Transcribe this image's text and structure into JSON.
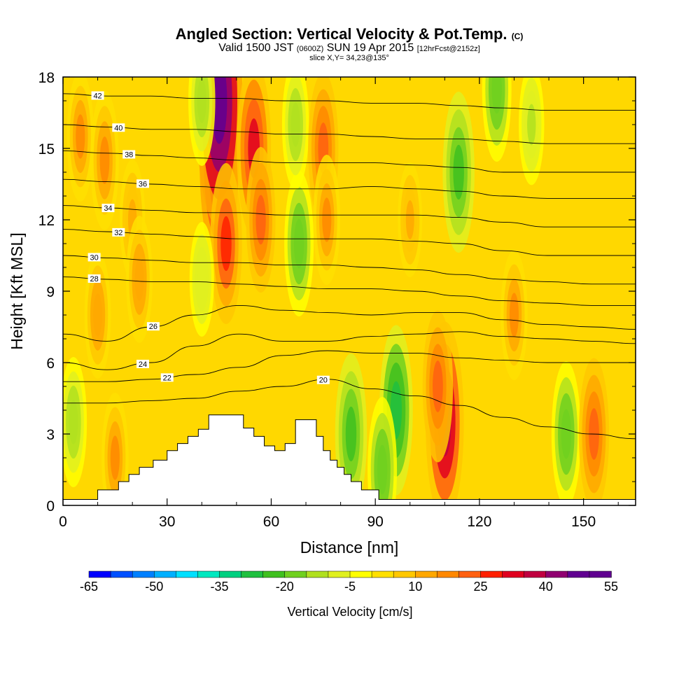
{
  "header": {
    "title": "Angled Section: Vertical Velocity & Pot.Temp.",
    "title_tag": "(C)",
    "valid_prefix": "Valid 1500 JST",
    "valid_utc": "(0600Z)",
    "valid_date": "SUN 19 Apr 2015",
    "forecast": "[12hrFcst@2152z]",
    "slice": "slice X,Y= 34,23@135°"
  },
  "chart_data": {
    "type": "heatmap",
    "xlabel": "Distance [nm]",
    "ylabel": "Height [Kft MSL]",
    "xlim": [
      0,
      165
    ],
    "ylim": [
      0,
      18
    ],
    "xticks": [
      0,
      30,
      60,
      90,
      120,
      150
    ],
    "yticks": [
      0,
      3,
      6,
      9,
      12,
      15,
      18
    ],
    "colorbar": {
      "label": "Vertical Velocity [cm/s]",
      "min": -65,
      "max": 55,
      "step": 5,
      "tick_labels": [
        -65,
        -50,
        -35,
        -20,
        -5,
        10,
        25,
        40,
        55
      ],
      "colors": [
        "#0000ff",
        "#0050ff",
        "#0080ff",
        "#00b0ff",
        "#00e0ff",
        "#00e8c0",
        "#00d080",
        "#20c040",
        "#40c020",
        "#70d020",
        "#b0e020",
        "#e0f020",
        "#ffff00",
        "#ffe000",
        "#ffc800",
        "#ffa800",
        "#ff8800",
        "#ff6010",
        "#ff2000",
        "#e00020",
        "#c00040",
        "#900070",
        "#600090"
      ]
    },
    "velocity_cells": [
      {
        "x": 5,
        "z": 15.5,
        "w": 15
      },
      {
        "x": 12,
        "z": 14.5,
        "w": 18
      },
      {
        "x": 20,
        "z": 12,
        "w": 12
      },
      {
        "x": 22,
        "z": 9.5,
        "w": 14
      },
      {
        "x": 10,
        "z": 8,
        "w": 14
      },
      {
        "x": 45,
        "z": 14.5,
        "w": 40
      },
      {
        "x": 45,
        "z": 17,
        "w": 55
      },
      {
        "x": 47,
        "z": 11,
        "w": 25
      },
      {
        "x": 55,
        "z": 15,
        "w": 30
      },
      {
        "x": 57,
        "z": 12,
        "w": 20
      },
      {
        "x": 40,
        "z": 17,
        "w": -15
      },
      {
        "x": 40,
        "z": 9.5,
        "w": -10
      },
      {
        "x": 68,
        "z": 11,
        "w": -20
      },
      {
        "x": 67,
        "z": 16,
        "w": -15
      },
      {
        "x": 75,
        "z": 15,
        "w": 22
      },
      {
        "x": 76,
        "z": 12,
        "w": 15
      },
      {
        "x": 83,
        "z": 3,
        "w": -25
      },
      {
        "x": 96,
        "z": 4,
        "w": -28
      },
      {
        "x": 92,
        "z": 1.5,
        "w": -20
      },
      {
        "x": 110,
        "z": 3.5,
        "w": 38
      },
      {
        "x": 108,
        "z": 5,
        "w": 22
      },
      {
        "x": 114,
        "z": 14,
        "w": -25
      },
      {
        "x": 125,
        "z": 17.5,
        "w": -20
      },
      {
        "x": 135,
        "z": 16,
        "w": -12
      },
      {
        "x": 145,
        "z": 3,
        "w": -20
      },
      {
        "x": 153,
        "z": 3,
        "w": 22
      },
      {
        "x": 100,
        "z": 12,
        "w": 10
      },
      {
        "x": 130,
        "z": 8,
        "w": 15
      },
      {
        "x": 3,
        "z": 3.5,
        "w": -15
      },
      {
        "x": 15,
        "z": 2,
        "w": 15
      }
    ],
    "terrain": [
      [
        0,
        0.25
      ],
      [
        10,
        0.25
      ],
      [
        10,
        0.65
      ],
      [
        16,
        0.65
      ],
      [
        16,
        1.0
      ],
      [
        19,
        1.0
      ],
      [
        19,
        1.3
      ],
      [
        22,
        1.3
      ],
      [
        22,
        1.6
      ],
      [
        26,
        1.6
      ],
      [
        26,
        1.9
      ],
      [
        30,
        1.9
      ],
      [
        30,
        2.3
      ],
      [
        33,
        2.3
      ],
      [
        33,
        2.6
      ],
      [
        36,
        2.6
      ],
      [
        36,
        2.9
      ],
      [
        39,
        2.9
      ],
      [
        39,
        3.2
      ],
      [
        42,
        3.2
      ],
      [
        42,
        3.8
      ],
      [
        52,
        3.8
      ],
      [
        52,
        3.25
      ],
      [
        55,
        3.25
      ],
      [
        55,
        2.9
      ],
      [
        58,
        2.9
      ],
      [
        58,
        2.5
      ],
      [
        61,
        2.5
      ],
      [
        61,
        2.3
      ],
      [
        64,
        2.3
      ],
      [
        64,
        2.6
      ],
      [
        67,
        2.6
      ],
      [
        67,
        3.6
      ],
      [
        73,
        3.6
      ],
      [
        73,
        2.9
      ],
      [
        75,
        2.9
      ],
      [
        75,
        2.3
      ],
      [
        77,
        2.3
      ],
      [
        77,
        1.9
      ],
      [
        79,
        1.9
      ],
      [
        79,
        1.6
      ],
      [
        81,
        1.6
      ],
      [
        81,
        1.3
      ],
      [
        83,
        1.3
      ],
      [
        83,
        1.0
      ],
      [
        86,
        1.0
      ],
      [
        86,
        0.65
      ],
      [
        91,
        0.65
      ],
      [
        91,
        0.25
      ],
      [
        165,
        0.25
      ]
    ],
    "theta_contours": [
      {
        "label": "20",
        "z": [
          4.3,
          4.3,
          4.4,
          4.5,
          4.8,
          5.0,
          5.3,
          4.9,
          4.6,
          4.2,
          3.7,
          3.3,
          3.0,
          2.8
        ],
        "lab_x": 75
      },
      {
        "label": "22",
        "z": [
          5.2,
          5.2,
          5.3,
          5.5,
          5.8,
          6.3,
          6.5,
          6.4,
          6.4,
          6.2,
          6.1,
          6.0,
          6.0,
          6.0
        ],
        "lab_x": 30
      },
      {
        "label": "24",
        "z": [
          6.0,
          5.7,
          6.0,
          6.7,
          7.2,
          6.9,
          6.9,
          7.1,
          7.2,
          7.3,
          7.1,
          7.0,
          6.9,
          6.8
        ],
        "lab_x": 23
      },
      {
        "label": "26",
        "z": [
          7.2,
          6.9,
          7.5,
          8.0,
          8.4,
          8.2,
          8.1,
          8.0,
          8.1,
          8.1,
          7.8,
          7.6,
          7.5,
          7.4
        ],
        "lab_x": 26
      },
      {
        "label": "28",
        "z": [
          9.6,
          9.5,
          9.4,
          9.4,
          9.3,
          9.2,
          9.1,
          9.1,
          9.0,
          8.8,
          8.6,
          8.5,
          8.4,
          8.4
        ],
        "lab_x": 9
      },
      {
        "label": "30",
        "z": [
          10.5,
          10.4,
          10.3,
          10.2,
          10.2,
          10.1,
          10.1,
          10.0,
          9.9,
          9.7,
          9.5,
          9.4,
          9.3,
          9.3
        ],
        "lab_x": 9
      },
      {
        "label": "32",
        "z": [
          11.6,
          11.5,
          11.4,
          11.3,
          11.2,
          11.2,
          11.2,
          11.2,
          11.1,
          11.0,
          10.7,
          10.5,
          10.5,
          10.5
        ],
        "lab_x": 16
      },
      {
        "label": "34",
        "z": [
          12.6,
          12.5,
          12.4,
          12.3,
          12.3,
          12.2,
          12.2,
          12.2,
          12.2,
          12.1,
          11.9,
          11.7,
          11.7,
          11.7
        ],
        "lab_x": 13
      },
      {
        "label": "36",
        "z": [
          13.7,
          13.6,
          13.5,
          13.4,
          13.3,
          13.3,
          13.3,
          13.4,
          13.3,
          13.2,
          13.0,
          12.9,
          12.9,
          12.9
        ],
        "lab_x": 23
      },
      {
        "label": "38",
        "z": [
          14.9,
          14.8,
          14.7,
          14.6,
          14.5,
          14.4,
          14.4,
          14.4,
          14.3,
          14.2,
          14.0,
          14.0,
          14.0,
          14.0
        ],
        "lab_x": 19
      },
      {
        "label": "40",
        "z": [
          16.0,
          15.9,
          15.8,
          15.8,
          15.7,
          15.6,
          15.6,
          15.5,
          15.4,
          15.4,
          15.3,
          15.2,
          15.2,
          15.2
        ],
        "lab_x": 16
      },
      {
        "label": "42",
        "z": [
          17.3,
          17.2,
          17.2,
          17.1,
          17.1,
          17.0,
          17.0,
          16.9,
          16.9,
          16.8,
          16.7,
          16.6,
          16.6,
          16.6
        ],
        "lab_x": 10
      }
    ]
  }
}
